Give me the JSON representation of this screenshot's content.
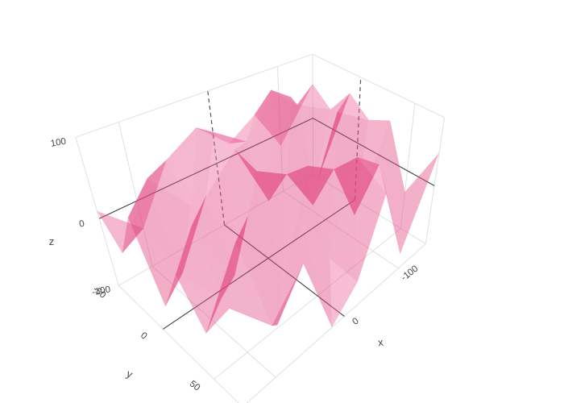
{
  "chart_data": {
    "type": "surface",
    "title": "",
    "x_axis": {
      "title": "x",
      "range": [
        140,
        -160
      ],
      "ticks": [
        {
          "v": 0,
          "label": "0"
        },
        {
          "v": -100,
          "label": "-100"
        }
      ],
      "grid_values": [
        100,
        0,
        -100
      ]
    },
    "y_axis": {
      "title": "y",
      "range": [
        -50,
        75
      ],
      "ticks": [
        {
          "v": -50,
          "label": "-50"
        },
        {
          "v": 0,
          "label": "0"
        },
        {
          "v": 50,
          "label": "50"
        }
      ],
      "grid_values": [
        0,
        50
      ]
    },
    "z_axis": {
      "title": "z",
      "range": [
        -100,
        100
      ],
      "ticks": [
        {
          "v": 100,
          "label": "100"
        },
        {
          "v": 0,
          "label": "0"
        },
        {
          "v": -100,
          "label": "-100"
        }
      ],
      "grid_values": [
        0
      ]
    },
    "x": [
      140,
      100,
      60,
      20,
      -20,
      -60,
      -100,
      -160
    ],
    "y": [
      -50,
      -30,
      -10,
      10,
      30,
      50,
      75
    ],
    "z": [
      [
        10,
        -40,
        35,
        60,
        20,
        45,
        -20,
        55
      ],
      [
        -25,
        50,
        -10,
        70,
        40,
        95,
        60,
        30
      ],
      [
        45,
        -60,
        25,
        65,
        -30,
        100,
        -45,
        70
      ],
      [
        -50,
        30,
        -70,
        55,
        30,
        -40,
        80,
        45
      ],
      [
        20,
        -45,
        40,
        -80,
        60,
        35,
        -60,
        60
      ],
      [
        -30,
        55,
        -95,
        25,
        -55,
        70,
        40,
        -35
      ],
      [
        40,
        -20,
        30,
        -100,
        -60,
        45,
        -75,
        50
      ]
    ],
    "surface_color": "#e8508c",
    "surface_color_light": "#f17aab",
    "surface_color_dark": "#db306e",
    "surface_opacity": 0.44,
    "style": {
      "background": "#ffffff",
      "grid_color": "#e0e0e0",
      "zeroline_color": "#3f3f3f",
      "label_color": "#444444",
      "zerolines_on_walls_dashed": true,
      "legend": "none",
      "grid_on": true
    }
  }
}
